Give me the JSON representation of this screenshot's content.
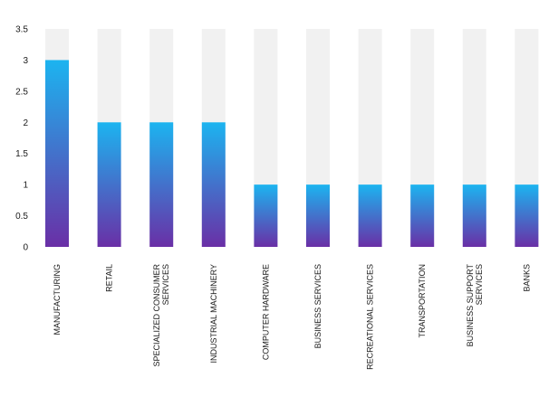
{
  "chart_data": {
    "type": "bar",
    "title": "",
    "xlabel": "",
    "ylabel": "",
    "ylim": [
      0,
      3.5
    ],
    "yticks": [
      0,
      0.5,
      1,
      1.5,
      2,
      2.5,
      3,
      3.5
    ],
    "ytick_labels": [
      "0",
      "0.5",
      "1",
      "1.5",
      "2",
      "2.5",
      "3",
      "3.5"
    ],
    "grid": false,
    "legend": "none",
    "categories": [
      [
        "MANUFACTURING"
      ],
      [
        "RETAIL"
      ],
      [
        "SPECIALIZED CONSUMER",
        "SERVICES"
      ],
      [
        "INDUSTRIAL MACHINERY"
      ],
      [
        "COMPUTER HARDWARE"
      ],
      [
        "BUSINESS SERVICES"
      ],
      [
        "RECREATIONAL SERVICES"
      ],
      [
        "TRANSPORTATION"
      ],
      [
        "BUSINESS SUPPORT",
        "SERVICES"
      ],
      [
        "BANKS"
      ]
    ],
    "values": [
      3,
      2,
      2,
      2,
      1,
      1,
      1,
      1,
      1,
      1
    ],
    "bar_background_max": 3.5,
    "colors": {
      "bar_top": "#1cb4f0",
      "bar_bottom": "#6a2fa6",
      "bar_background": "#f1f1f1",
      "text": "#1a1a1a"
    }
  }
}
